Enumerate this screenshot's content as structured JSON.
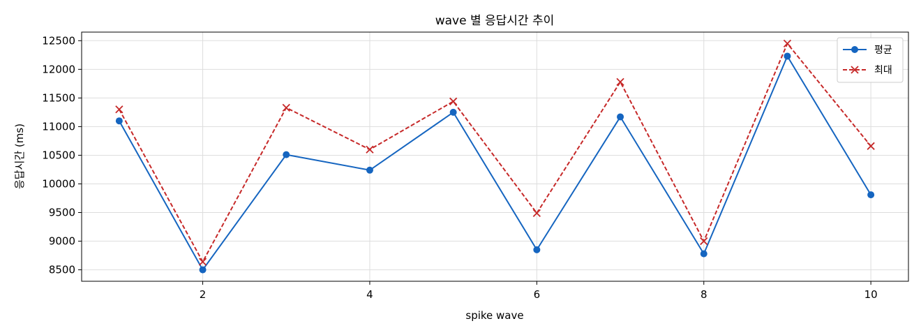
{
  "chart_data": {
    "type": "line",
    "title": "wave 별 응답시간 추이",
    "xlabel": "spike wave",
    "ylabel": "응답시간 (ms)",
    "x": [
      1,
      2,
      3,
      4,
      5,
      6,
      7,
      8,
      9,
      10
    ],
    "xticks": [
      2,
      4,
      6,
      8,
      10
    ],
    "yticks": [
      8500,
      9000,
      9500,
      10000,
      10500,
      11000,
      11500,
      12000,
      12500
    ],
    "xlim": [
      0.55,
      10.45
    ],
    "ylim": [
      8300,
      12650
    ],
    "grid": true,
    "legend_position": "top-right",
    "series": [
      {
        "name": "평균",
        "color": "#1565c0",
        "line_style": "solid",
        "marker": "circle",
        "values": [
          11100,
          8500,
          10510,
          10240,
          11250,
          8850,
          11170,
          8780,
          12230,
          9810
        ]
      },
      {
        "name": "최대",
        "color": "#c62828",
        "line_style": "dashed",
        "marker": "x",
        "values": [
          11300,
          8640,
          11330,
          10600,
          11440,
          9490,
          11780,
          9000,
          12450,
          10660
        ]
      }
    ]
  }
}
